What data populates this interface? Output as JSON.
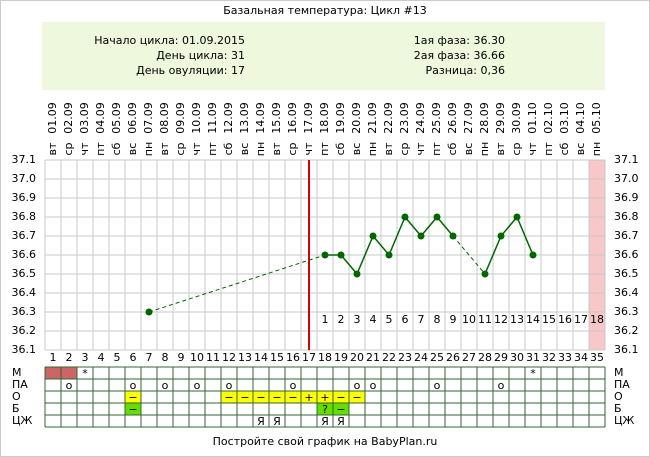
{
  "chart_data": {
    "type": "line",
    "title": "Базальная температура: Цикл #13",
    "info_left": [
      "Начало цикла: 01.09.2015",
      "День цикла: 31",
      "День овуляции: 17"
    ],
    "info_right": [
      "1ая фаза: 36.30",
      "2ая фаза: 36.66",
      "Разница: 0,36"
    ],
    "x": [
      1,
      2,
      3,
      4,
      5,
      6,
      7,
      8,
      9,
      10,
      11,
      12,
      13,
      14,
      15,
      16,
      17,
      18,
      19,
      20,
      21,
      22,
      23,
      24,
      25,
      26,
      27,
      28,
      29,
      30,
      31,
      32,
      33,
      34,
      35
    ],
    "dates": [
      "01.09",
      "02.09",
      "03.09",
      "04.09",
      "05.09",
      "06.09",
      "07.09",
      "08.09",
      "09.09",
      "10.09",
      "11.09",
      "12.09",
      "13.09",
      "14.09",
      "15.09",
      "16.09",
      "17.09",
      "18.09",
      "19.09",
      "20.09",
      "21.09",
      "22.09",
      "23.09",
      "24.09",
      "25.09",
      "26.09",
      "27.09",
      "28.09",
      "29.09",
      "30.09",
      "01.10",
      "02.10",
      "03.10",
      "04.10",
      "05.10"
    ],
    "weekdays": [
      "вт",
      "ср",
      "чт",
      "пт",
      "сб",
      "вс",
      "пн",
      "вт",
      "ср",
      "чт",
      "пт",
      "сб",
      "вс",
      "пн",
      "вт",
      "ср",
      "чт",
      "пт",
      "сб",
      "вс",
      "пн",
      "вт",
      "ср",
      "чт",
      "пт",
      "сб",
      "вс",
      "пн",
      "вт",
      "ср",
      "чт",
      "пт",
      "сб",
      "вс",
      "пн"
    ],
    "series": [
      {
        "color": "#006600",
        "values": [
          null,
          null,
          null,
          null,
          null,
          null,
          36.3,
          null,
          null,
          null,
          null,
          null,
          null,
          null,
          null,
          null,
          null,
          36.6,
          36.6,
          36.5,
          36.7,
          36.6,
          36.8,
          36.7,
          36.8,
          36.7,
          null,
          36.5,
          36.7,
          36.8,
          36.6,
          null,
          null,
          null,
          null
        ]
      }
    ],
    "ylim": [
      36.1,
      37.1
    ],
    "yticks": [
      36.1,
      36.2,
      36.3,
      36.4,
      36.5,
      36.6,
      36.7,
      36.8,
      36.9,
      {
        "value": 37,
        "label": "37.0"
      },
      37.1
    ],
    "ovulation_day": 17,
    "ovulation_color": "#dd0000",
    "post_ovulation_days": [
      1,
      2,
      3,
      4,
      5,
      6,
      7,
      8,
      9,
      10,
      11,
      12,
      13,
      14,
      15,
      16,
      17,
      18
    ],
    "highlight_days": [
      35
    ],
    "moon_days": [
      4,
      34
    ],
    "grid": true,
    "tracks": [
      {
        "label": "М",
        "cells": [
          {
            "day": 1,
            "text": null,
            "color": "#cc6666"
          },
          {
            "day": 2,
            "text": null,
            "color": "#cc6666"
          },
          {
            "day": 3,
            "text": "*",
            "color": null
          },
          {
            "day": 31,
            "text": "*",
            "color": null
          }
        ]
      },
      {
        "label": "ПА",
        "cells": [
          {
            "day": 2,
            "text": "o",
            "color": null
          },
          {
            "day": 6,
            "text": "o",
            "color": null
          },
          {
            "day": 8,
            "text": "o",
            "color": null
          },
          {
            "day": 10,
            "text": "o",
            "color": null
          },
          {
            "day": 12,
            "text": "o",
            "color": null
          },
          {
            "day": 16,
            "text": "o",
            "color": null
          },
          {
            "day": 20,
            "text": "o",
            "color": null
          },
          {
            "day": 21,
            "text": "o",
            "color": null
          },
          {
            "day": 25,
            "text": "o",
            "color": null
          },
          {
            "day": 29,
            "text": "o",
            "color": null
          }
        ]
      },
      {
        "label": "О",
        "cells": [
          {
            "day": 6,
            "text": "−",
            "color": "#ffff00"
          },
          {
            "day": 12,
            "text": "−",
            "color": "#ffff00"
          },
          {
            "day": 13,
            "text": "−",
            "color": "#ffff00"
          },
          {
            "day": 14,
            "text": "−",
            "color": "#ffff00"
          },
          {
            "day": 15,
            "text": "−",
            "color": "#ffff00"
          },
          {
            "day": 16,
            "text": "−",
            "color": "#ffff00"
          },
          {
            "day": 17,
            "text": "+",
            "color": "#ffff00"
          },
          {
            "day": 18,
            "text": "+",
            "color": "#ffff00"
          },
          {
            "day": 19,
            "text": "−",
            "color": "#ffff00"
          },
          {
            "day": 20,
            "text": "−",
            "color": "#ffff00"
          }
        ]
      },
      {
        "label": "Б",
        "cells": [
          {
            "day": 6,
            "text": "−",
            "color": "#66dd00"
          },
          {
            "day": 18,
            "text": "?",
            "color": "#66dd00"
          },
          {
            "day": 19,
            "text": "−",
            "color": "#66dd00"
          }
        ]
      },
      {
        "label": "ЦЖ",
        "cells": [
          {
            "day": 14,
            "text": "Я",
            "color": null
          },
          {
            "day": 15,
            "text": "Я",
            "color": null
          },
          {
            "day": 18,
            "text": "Я",
            "color": null
          },
          {
            "day": 19,
            "text": "Я",
            "color": null
          }
        ]
      }
    ],
    "footer": "Постройте свой график на BabyPlan.ru"
  }
}
